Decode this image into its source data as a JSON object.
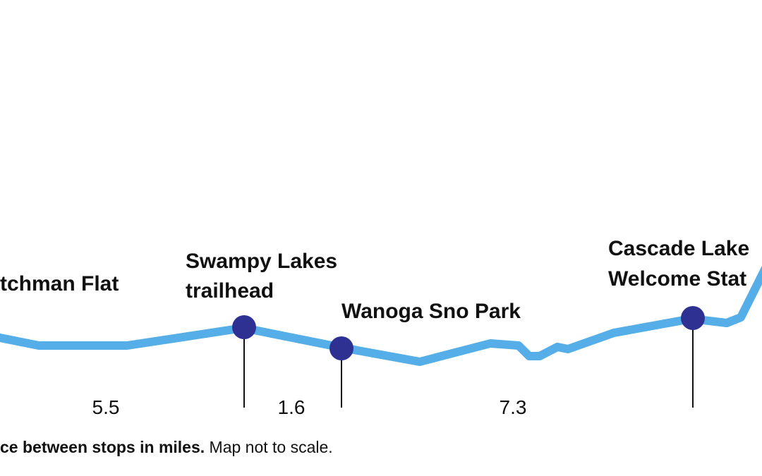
{
  "stops": [
    {
      "lines": [
        "tchman Flat"
      ]
    },
    {
      "lines": [
        "Swampy Lakes",
        "trailhead"
      ]
    },
    {
      "lines": [
        "Wanoga Sno Park"
      ]
    },
    {
      "lines": [
        "Cascade Lake",
        "Welcome Stat"
      ]
    }
  ],
  "distances": [
    5.5,
    1.6,
    7.3
  ],
  "note": {
    "bold": "ce between stops in miles.",
    "text": "Map not to scale."
  }
}
